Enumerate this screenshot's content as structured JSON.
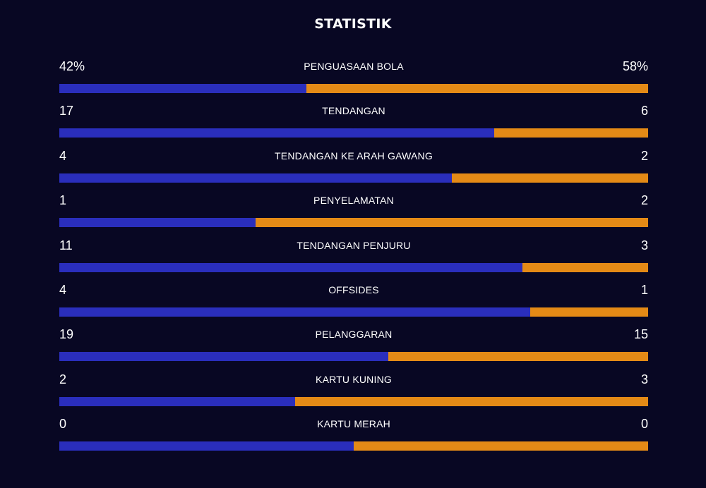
{
  "title": "STATISTIK",
  "colors": {
    "background": "#080723",
    "home": "#2a2ebc",
    "away": "#e48a16"
  },
  "stats": [
    {
      "label": "PENGUASAAN BOLA",
      "home": "42%",
      "away": "58%",
      "home_share": 0.42
    },
    {
      "label": "TENDANGAN",
      "home": "17",
      "away": "6",
      "home_share": 0.739
    },
    {
      "label": "TENDANGAN KE ARAH GAWANG",
      "home": "4",
      "away": "2",
      "home_share": 0.667
    },
    {
      "label": "PENYELAMATAN",
      "home": "1",
      "away": "2",
      "home_share": 0.333
    },
    {
      "label": "TENDANGAN PENJURU",
      "home": "11",
      "away": "3",
      "home_share": 0.786
    },
    {
      "label": "OFFSIDES",
      "home": "4",
      "away": "1",
      "home_share": 0.8
    },
    {
      "label": "PELANGGARAN",
      "home": "19",
      "away": "15",
      "home_share": 0.559
    },
    {
      "label": "KARTU KUNING",
      "home": "2",
      "away": "3",
      "home_share": 0.4
    },
    {
      "label": "KARTU MERAH",
      "home": "0",
      "away": "0",
      "home_share": 0.5
    }
  ]
}
